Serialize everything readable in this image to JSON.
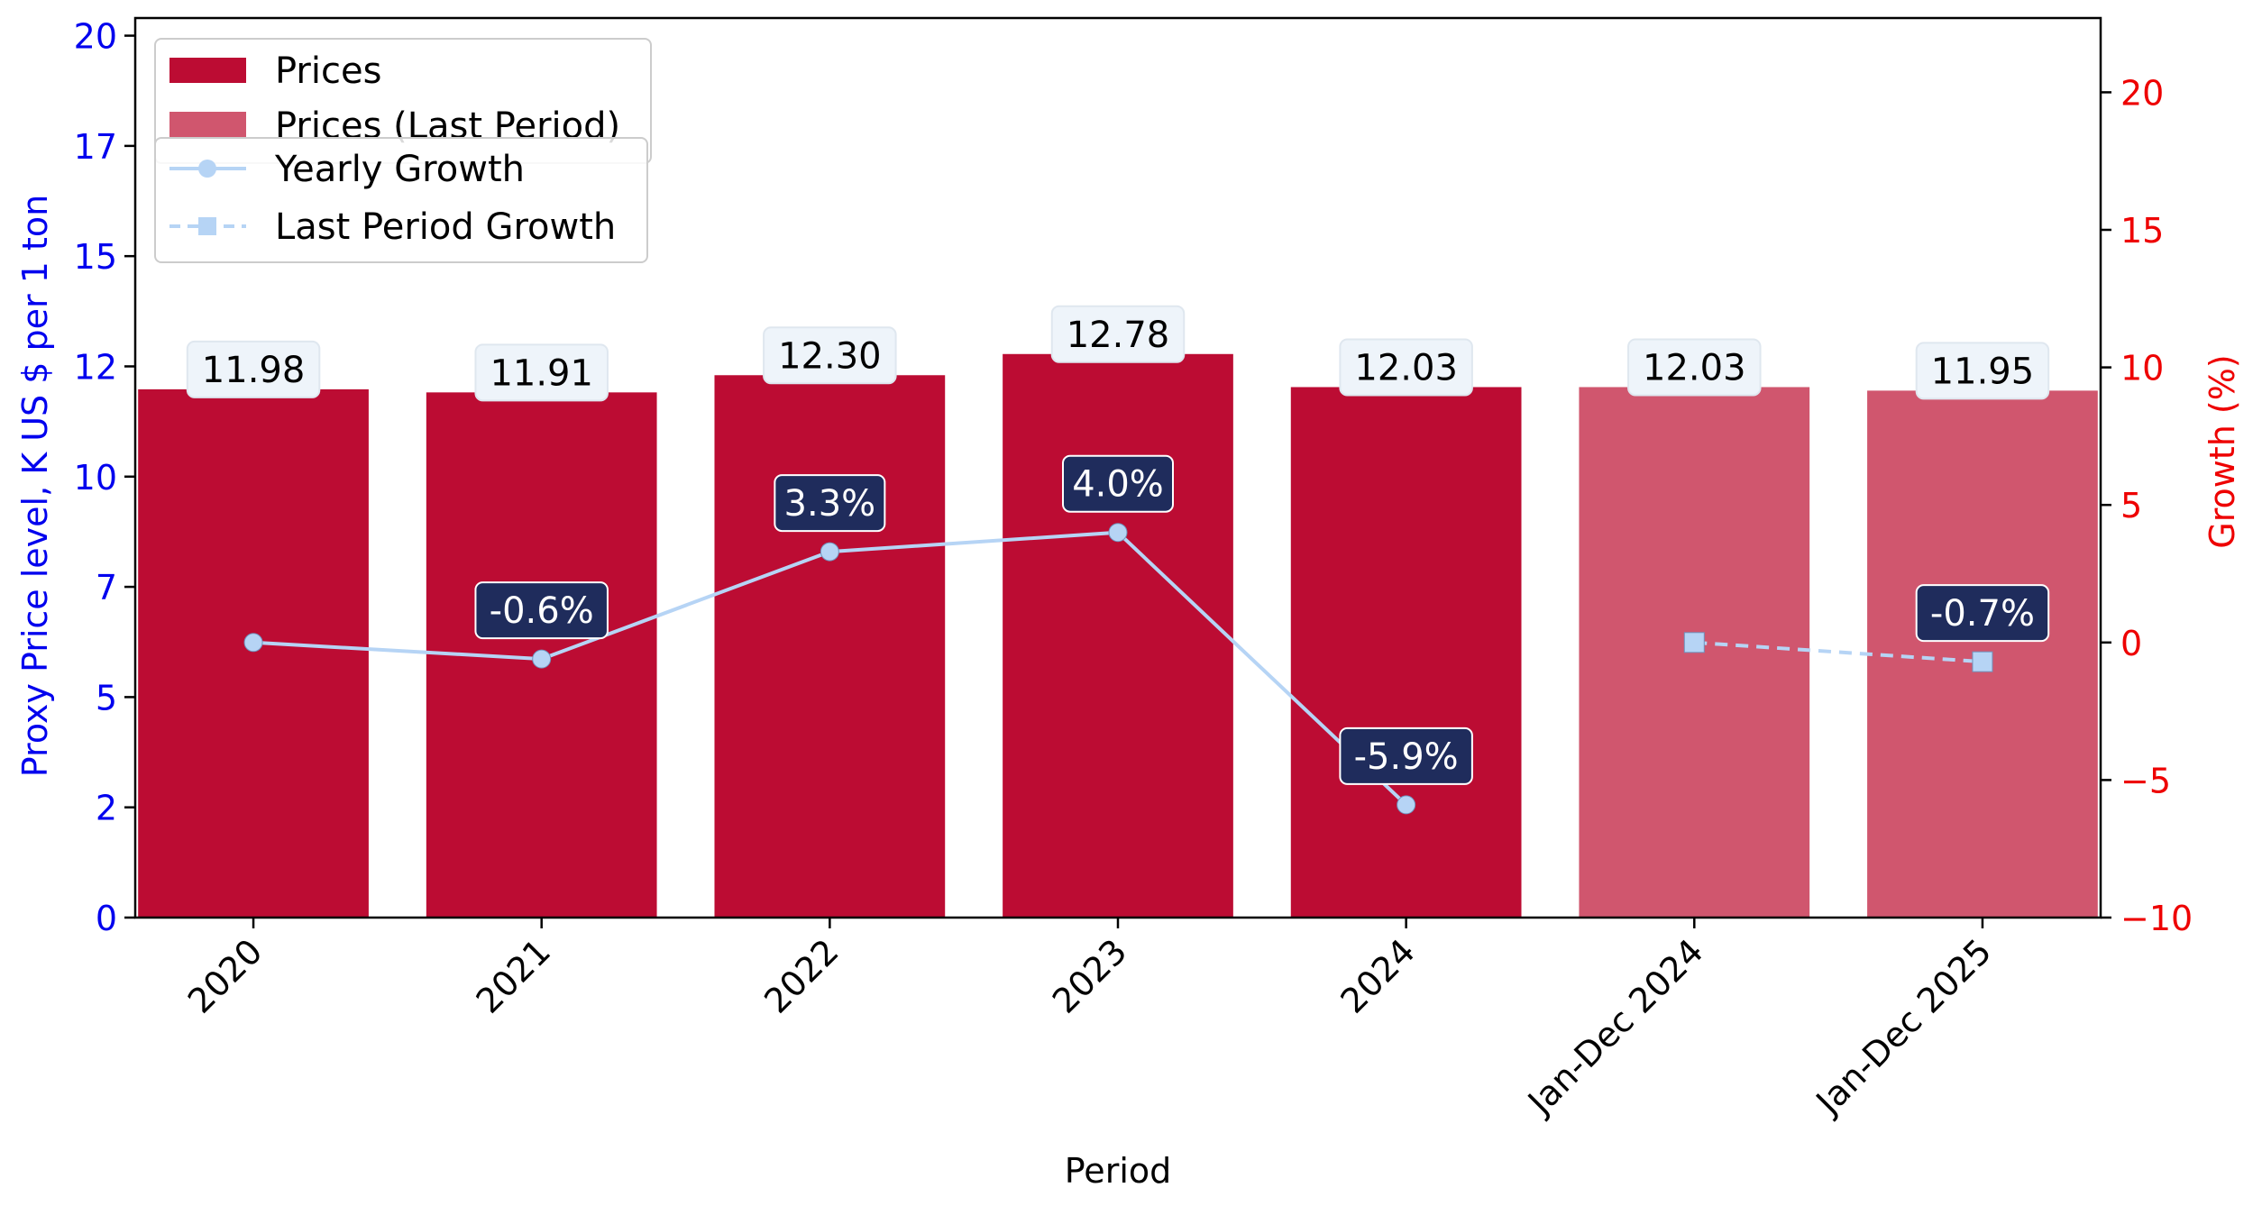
{
  "chart_data": {
    "type": "bar",
    "categories": [
      "2020",
      "2021",
      "2022",
      "2023",
      "2024",
      "Jan-Dec 2024",
      "Jan-Dec 2025"
    ],
    "xlabel": "Period",
    "ylabel": "Proxy Price level, K US $ per 1 ton",
    "y2label": "Growth (%)",
    "ylim": [
      0,
      20.4
    ],
    "y2lim": [
      -10,
      22.7
    ],
    "yticks": [
      "0",
      "2",
      "5",
      "7",
      "10",
      "12",
      "15",
      "17",
      "20"
    ],
    "y2ticks": [
      "−10",
      "−5",
      "0",
      "5",
      "10",
      "15",
      "20"
    ],
    "series": [
      {
        "name": "Prices",
        "kind": "bar",
        "color": "#bc0c33",
        "values": [
          11.98,
          11.91,
          12.3,
          12.78,
          12.03,
          null,
          null
        ],
        "labels": [
          "11.98",
          "11.91",
          "12.30",
          "12.78",
          "12.03",
          null,
          null
        ]
      },
      {
        "name": "Prices (Last Period)",
        "kind": "bar",
        "color": "#d0566e",
        "values": [
          null,
          null,
          null,
          null,
          null,
          12.03,
          11.95
        ],
        "labels": [
          null,
          null,
          null,
          null,
          null,
          "12.03",
          "11.95"
        ]
      },
      {
        "name": "Yearly Growth",
        "kind": "line",
        "axis": "right",
        "color": "#b6d4f5",
        "marker": "circle",
        "values": [
          0.0,
          -0.6,
          3.3,
          4.0,
          -5.9,
          null,
          null
        ],
        "labels": [
          null,
          "-0.6%",
          "3.3%",
          "4.0%",
          "-5.9%",
          null,
          null
        ]
      },
      {
        "name": "Last Period Growth",
        "kind": "line",
        "axis": "right",
        "style": "dashed",
        "color": "#b6d4f5",
        "marker": "square",
        "values": [
          null,
          null,
          null,
          null,
          null,
          0.0,
          -0.7
        ],
        "labels": [
          null,
          null,
          null,
          null,
          null,
          null,
          "-0.7%"
        ]
      }
    ],
    "legend_position": "top-left",
    "grid": false,
    "colors": {
      "left_axis": "#0000ee",
      "right_axis": "#ee0000",
      "label_box": "#1f2c5c",
      "value_box": "#eef4fa"
    }
  }
}
